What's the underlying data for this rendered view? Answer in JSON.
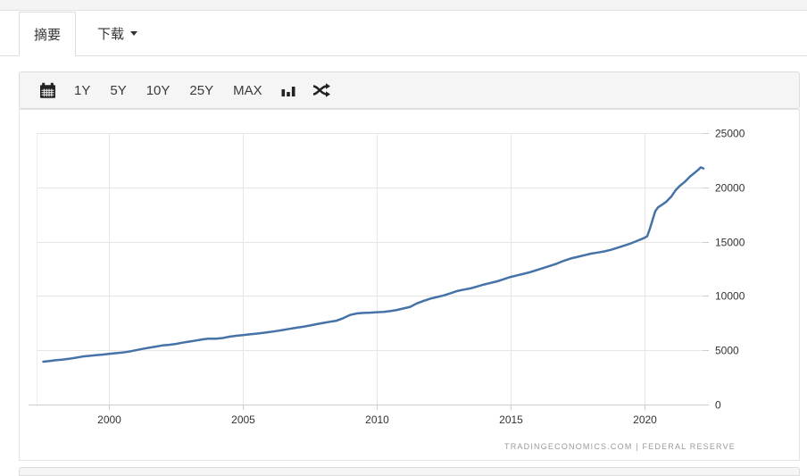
{
  "tabs": {
    "summary_label": "摘要",
    "download_label": "下载"
  },
  "toolbar": {
    "ranges": [
      "1Y",
      "5Y",
      "10Y",
      "25Y",
      "MAX"
    ],
    "icons": [
      "calendar-icon",
      "bar-chart-icon",
      "shuffle-icon"
    ]
  },
  "chart_data": {
    "type": "line",
    "title": "",
    "xlabel": "",
    "ylabel": "",
    "xlim": [
      1997.3,
      2022.3
    ],
    "ylim": [
      0,
      25000
    ],
    "x_ticks": [
      2000,
      2005,
      2010,
      2015,
      2020
    ],
    "y_ticks": [
      0,
      5000,
      10000,
      15000,
      20000,
      25000
    ],
    "grid": true,
    "legend": "none",
    "series": [
      {
        "name": "value",
        "color": "#4572a7",
        "x": [
          1997.55,
          1997.75,
          1998,
          1998.25,
          1998.5,
          1998.75,
          1999,
          1999.25,
          1999.5,
          1999.75,
          2000,
          2000.25,
          2000.5,
          2000.75,
          2001,
          2001.25,
          2001.5,
          2001.75,
          2002,
          2002.25,
          2002.5,
          2002.75,
          2003,
          2003.25,
          2003.5,
          2003.7,
          2004,
          2004.25,
          2004.5,
          2004.75,
          2005,
          2005.25,
          2005.5,
          2005.75,
          2006,
          2006.25,
          2006.5,
          2006.75,
          2007,
          2007.25,
          2007.5,
          2007.75,
          2008,
          2008.25,
          2008.5,
          2008.75,
          2009,
          2009.25,
          2009.5,
          2009.75,
          2010,
          2010.25,
          2010.5,
          2010.75,
          2011,
          2011.25,
          2011.5,
          2011.75,
          2012,
          2012.25,
          2012.5,
          2012.75,
          2013,
          2013.25,
          2013.5,
          2013.75,
          2014,
          2014.25,
          2014.5,
          2014.75,
          2015,
          2015.25,
          2015.5,
          2015.75,
          2016,
          2016.25,
          2016.5,
          2016.75,
          2017,
          2017.25,
          2017.5,
          2017.75,
          2018,
          2018.25,
          2018.5,
          2018.75,
          2019,
          2019.25,
          2019.5,
          2019.75,
          2020,
          2020.1,
          2020.2,
          2020.3,
          2020.4,
          2020.5,
          2020.65,
          2020.8,
          2021,
          2021.15,
          2021.3,
          2021.5,
          2021.7,
          2021.85,
          2022,
          2022.1,
          2022.2
        ],
        "values": [
          3950,
          4000,
          4080,
          4140,
          4210,
          4310,
          4420,
          4480,
          4540,
          4600,
          4670,
          4730,
          4790,
          4880,
          5000,
          5120,
          5230,
          5340,
          5440,
          5500,
          5580,
          5700,
          5800,
          5900,
          6000,
          6070,
          6060,
          6130,
          6250,
          6330,
          6400,
          6460,
          6530,
          6600,
          6680,
          6770,
          6870,
          6970,
          7070,
          7160,
          7280,
          7400,
          7520,
          7620,
          7720,
          7950,
          8250,
          8390,
          8440,
          8460,
          8500,
          8530,
          8600,
          8710,
          8850,
          9000,
          9320,
          9550,
          9750,
          9900,
          10050,
          10250,
          10450,
          10580,
          10700,
          10870,
          11050,
          11200,
          11350,
          11550,
          11750,
          11900,
          12050,
          12200,
          12400,
          12600,
          12800,
          13000,
          13250,
          13450,
          13600,
          13750,
          13900,
          14000,
          14100,
          14250,
          14450,
          14650,
          14850,
          15100,
          15350,
          15500,
          16200,
          17000,
          17800,
          18150,
          18400,
          18650,
          19150,
          19700,
          20100,
          20500,
          21000,
          21300,
          21600,
          21840,
          21740
        ]
      }
    ],
    "source_note": "TRADINGECONOMICS.COM  |  FEDERAL RESERVE"
  },
  "colors": {
    "series_line": "#4572a7",
    "grid_line": "#e6e6e6",
    "axis_line": "#cccccc",
    "toolbar_bg": "#f5f5f5"
  }
}
